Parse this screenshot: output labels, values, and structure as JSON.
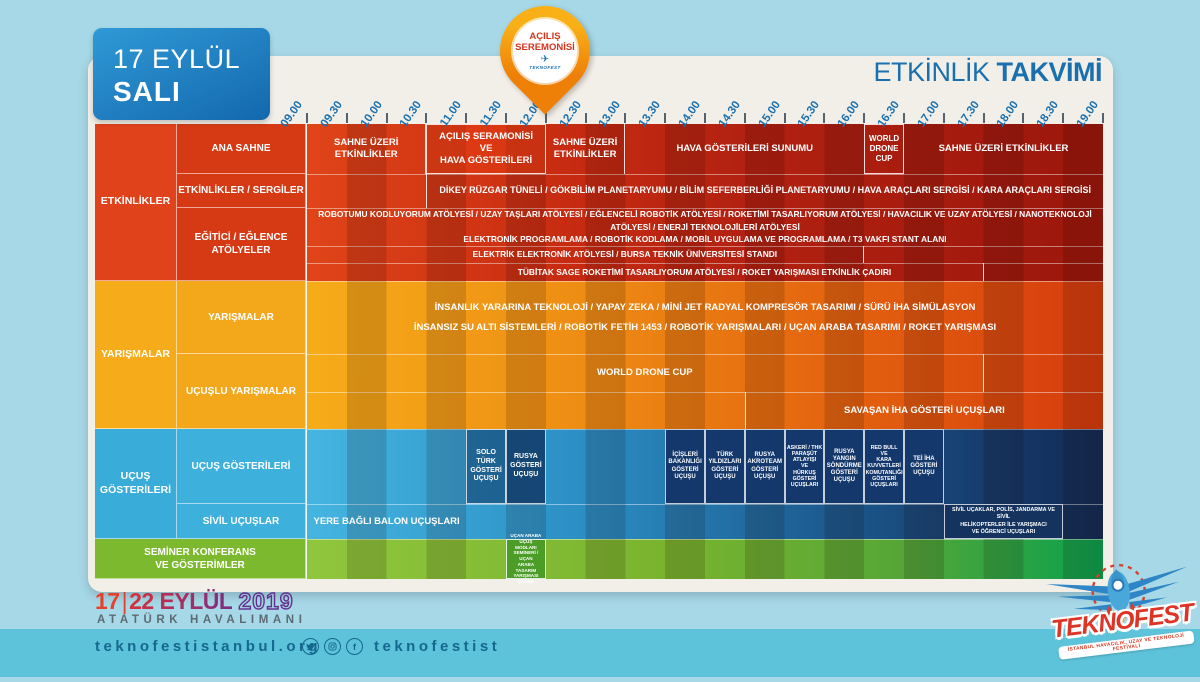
{
  "page": {
    "date_box": {
      "line1": "17 EYLÜL",
      "line2": "SALI"
    },
    "badge": {
      "text": "AÇILIŞ\nSEREMONİSİ",
      "logo": "TEKNOFEST"
    },
    "title": {
      "light": "ETKİNLİK",
      "bold": "TAKVİMİ"
    },
    "colors": {
      "background": "#a7d8e7",
      "card": "#f2efe9",
      "accent_blue": "#1a70af",
      "group_red": "#d63a15",
      "group_yellow": "#f3a71b",
      "group_blue": "#3db0dc",
      "group_green": "#7cb92e",
      "footer_band": "#5dc3da",
      "badge_orange": "#f9b016"
    }
  },
  "labels": {
    "groups": [
      "ETKİNLİKLER",
      "YARIŞMALAR",
      "UÇUŞ\nGÖSTERİLERİ",
      "SEMİNER KONFERANS\nVE GÖSTERİMLER"
    ],
    "rows": [
      "ANA SAHNE",
      "ETKİNLİKLER / SERGİLER",
      "EĞİTİCİ / EĞLENCE\nATÖLYELER",
      "YARIŞMALAR",
      "UÇUŞLU YARIŞMALAR",
      "UÇUŞ GÖSTERİLERİ",
      "SİVİL UÇUŞLAR"
    ]
  },
  "chart_data": {
    "type": "gantt-schedule",
    "title": "ETKİNLİK TAKVİMİ",
    "day": "17 EYLÜL SALI",
    "time_ticks": [
      "09.00",
      "09.30",
      "10.00",
      "10.30",
      "11.00",
      "11.30",
      "12.00",
      "12.30",
      "13.00",
      "13.30",
      "14.00",
      "14.30",
      "15.00",
      "15.30",
      "16.00",
      "16.30",
      "17.00",
      "17.30",
      "18.00",
      "18.30",
      "19.00"
    ],
    "rows": [
      {
        "group": "ETKİNLİKLER",
        "row_label": "ANA SAHNE",
        "events": [
          {
            "label": "SAHNE ÜZERİ ETKİNLİKLER",
            "start": "09.00",
            "end": "10.30"
          },
          {
            "label": "AÇILIŞ SERAMONİSİ\nVE\nHAVA GÖSTERİLERİ",
            "start": "10.30",
            "end": "12.00"
          },
          {
            "label": "SAHNE ÜZERİ\nETKİNLİKLER",
            "start": "12.00",
            "end": "13.00"
          },
          {
            "label": "HAVA GÖSTERİLERİ SUNUMU",
            "start": "13.00",
            "end": "16.00"
          },
          {
            "label": "WORLD\nDRONE\nCUP",
            "start": "16.00",
            "end": "16.30"
          },
          {
            "label": "SAHNE ÜZERİ ETKİNLİKLER",
            "start": "16.30",
            "end": "19.00"
          }
        ]
      },
      {
        "group": "ETKİNLİKLER",
        "row_label": "ETKİNLİKLER / SERGİLER",
        "events": [
          {
            "label": "DİKEY RÜZGAR TÜNELİ / GÖKBİLİM PLANETARYUMU / BİLİM SEFERBERLİĞİ PLANETARYUMU / HAVA ARAÇLARI SERGİSİ / KARA ARAÇLARI SERGİSİ",
            "start": "10.30",
            "end": "19.00"
          }
        ]
      },
      {
        "group": "ETKİNLİKLER",
        "row_label": "EĞİTİCİ / EĞLENCE ATÖLYELER",
        "events": [
          {
            "label": "ROBOTUMU KODLUYORUM ATÖLYESİ / UZAY TAŞLARI ATÖLYESİ / EĞLENCELİ ROBOTİK ATÖLYESİ / ROKETİMİ TASARLIYORUM ATÖLYESİ / HAVACILIK VE UZAY ATÖLYESİ / NANOTEKNOLOJİ ATÖLYESİ / ENERJİ TEKNOLOJİLERİ ATÖLYESİ\nELEKTRONİK PROGRAMLAMA / ROBOTİK KODLAMA / MOBİL UYGULAMA VE PROGRAMLAMA / T3 VAKFI STANT ALANI",
            "start": "09.00",
            "end": "19.00"
          }
        ]
      },
      {
        "group": "ETKİNLİKLER",
        "row_label": "EĞİTİCİ / EĞLENCE ATÖLYELER",
        "events": [
          {
            "label": "ELEKTRİK ELEKTRONİK ATÖLYESİ / BURSA TEKNİK ÜNİVERSİTESİ STANDI",
            "start": "10.00",
            "end": "16.00"
          }
        ]
      },
      {
        "group": "ETKİNLİKLER",
        "row_label": "EĞİTİCİ / EĞLENCE ATÖLYELER",
        "events": [
          {
            "label": "TÜBİTAK SAGE ROKETİMİ TASARLIYORUM ATÖLYESİ / ROKET YARIŞMASI ETKİNLİK ÇADIRI",
            "start": "10.30",
            "end": "17.30"
          }
        ]
      },
      {
        "group": "YARIŞMALAR",
        "row_label": "YARIŞMALAR",
        "events": [
          {
            "label": "İNSANLIK YARARINA TEKNOLOJİ / YAPAY ZEKA / MİNİ JET RADYAL KOMPRESÖR TASARIMI / SÜRÜ İHA SİMÜLASYON\nİNSANSIZ SU ALTI SİSTEMLERİ / ROBOTİK FETİH 1453 / ROBOTİK YARIŞMALARI / UÇAN ARABA TASARIMI / ROKET YARIŞMASI",
            "start": "09.00",
            "end": "19.00"
          }
        ]
      },
      {
        "group": "YARIŞMALAR",
        "row_label": "UÇUŞLU YARIŞMALAR",
        "events": [
          {
            "label": "WORLD DRONE CUP",
            "start": "09.00",
            "end": "17.30"
          }
        ]
      },
      {
        "group": "YARIŞMALAR",
        "row_label": "UÇUŞLU YARIŞMALAR",
        "events": [
          {
            "label": "SAVAŞAN İHA GÖSTERİ UÇUŞLARI",
            "start": "14.30",
            "end": "19.00"
          }
        ]
      },
      {
        "group": "UÇUŞ GÖSTERİLERİ",
        "row_label": "UÇUŞ GÖSTERİLERİ",
        "events": [
          {
            "label": "SOLO\nTÜRK\nGÖSTERİ\nUÇUŞU",
            "start": "11.00",
            "end": "11.30"
          },
          {
            "label": "RUSYA\nGÖSTERİ\nUÇUŞU",
            "start": "11.30",
            "end": "12.00"
          },
          {
            "label": "İÇİŞLERİ\nBAKANLIĞI\nGÖSTERİ\nUÇUŞU",
            "start": "13.30",
            "end": "14.00"
          },
          {
            "label": "TÜRK\nYILDIZLARI\nGÖSTERİ\nUÇUŞU",
            "start": "14.00",
            "end": "14.30"
          },
          {
            "label": "RUSYA\nAKROTEAM\nGÖSTERİ\nUÇUŞU",
            "start": "14.30",
            "end": "15.00"
          },
          {
            "label": "ASKERİ / THK\nPARAŞÜT\nATLAYIŞI\nVE\nHÜRKUŞ\nGÖSTERİ\nUÇUŞLARI",
            "start": "15.00",
            "end": "15.30"
          },
          {
            "label": "RUSYA\nYANGIN\nSÖNDÜRME\nGÖSTERİ\nUÇUŞU",
            "start": "15.30",
            "end": "16.00"
          },
          {
            "label": "RED BULL\nVE\nKARA\nKUVVETLERİ\nKOMUTANLIĞI\nGÖSTERİ\nUÇUŞLARI",
            "start": "16.00",
            "end": "16.30"
          },
          {
            "label": "TEİ İHA\nGÖSTERİ\nUÇUŞU",
            "start": "16.30",
            "end": "17.00"
          }
        ]
      },
      {
        "group": "UÇUŞ GÖSTERİLERİ",
        "row_label": "SİVİL UÇUŞLAR",
        "events": [
          {
            "label": "YERE BAĞLI BALON UÇUŞLARI",
            "start": "09.00",
            "end": "11.00"
          },
          {
            "label": "SİVİL UÇAKLAR, POLİS, JANDARMA VE SİVİL\nHELİKOPTERLER İLE YARIŞMACI\nVE ÖĞRENCİ UÇUŞLARI",
            "start": "17.00",
            "end": "18.30"
          }
        ]
      },
      {
        "group": "SEMİNER KONFERANS VE GÖSTERİMLER",
        "row_label": "SEMİNER KONFERANS VE GÖSTERİMLER",
        "events": [
          {
            "label": "UÇAN ARABA\nUÇUŞ MODLARI\nSEMİNERİ / UÇAN\nARABA TASARIM\nYARIŞMASI ÇADIRI",
            "start": "11.30",
            "end": "12.00"
          }
        ]
      }
    ]
  },
  "footer": {
    "big_date": {
      "d1": "17",
      "sep": "|",
      "d2": "22 EYLÜL",
      "year": "2019"
    },
    "venue": "ATATÜRK HAVALIMANI",
    "website": "teknofestistanbul.org",
    "social_handle": "teknofestist"
  },
  "logo": {
    "title": "TEKNOFEST",
    "tagline": "İSTANBUL HAVACILIK, UZAY VE TEKNOLOJİ FESTİVALİ"
  }
}
